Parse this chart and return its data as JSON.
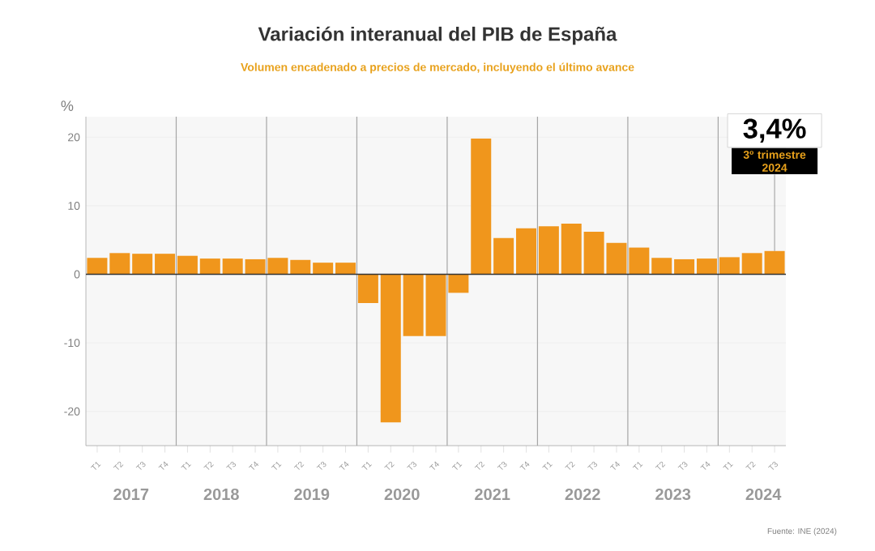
{
  "chart_data": {
    "type": "bar",
    "title": "Variación interanual del PIB de España",
    "subtitle": "Volumen encadenado a precios de mercado, incluyendo el último avance",
    "ylabel": "%",
    "categories": [
      "T1",
      "T2",
      "T3",
      "T4",
      "T1",
      "T2",
      "T3",
      "T4",
      "T1",
      "T2",
      "T3",
      "T4",
      "T1",
      "T2",
      "T3",
      "T4",
      "T1",
      "T2",
      "T3",
      "T4",
      "T1",
      "T2",
      "T3",
      "T4",
      "T1",
      "T2",
      "T3",
      "T4",
      "T1",
      "T2",
      "T3"
    ],
    "values": [
      2.4,
      3.1,
      3.0,
      3.0,
      2.7,
      2.3,
      2.3,
      2.2,
      2.4,
      2.1,
      1.7,
      1.7,
      -4.2,
      -21.6,
      -9.0,
      -9.0,
      -2.7,
      19.8,
      5.3,
      6.7,
      7.0,
      7.4,
      6.2,
      4.6,
      3.9,
      2.4,
      2.2,
      2.3,
      2.5,
      3.1,
      3.4
    ],
    "color": "#f0961c",
    "ylim": [
      -25,
      23
    ],
    "yticks": [
      -20,
      -10,
      0,
      10,
      20
    ],
    "grid": "y",
    "annotations": [
      "2017",
      "2018",
      "2019",
      "2020",
      "2021",
      "2022",
      "2023",
      "2024",
      {
        "text": "3,4%",
        "y": 3.4
      },
      "3º trimestre 2024",
      "Fuente: INE (2024)"
    ]
  }
}
